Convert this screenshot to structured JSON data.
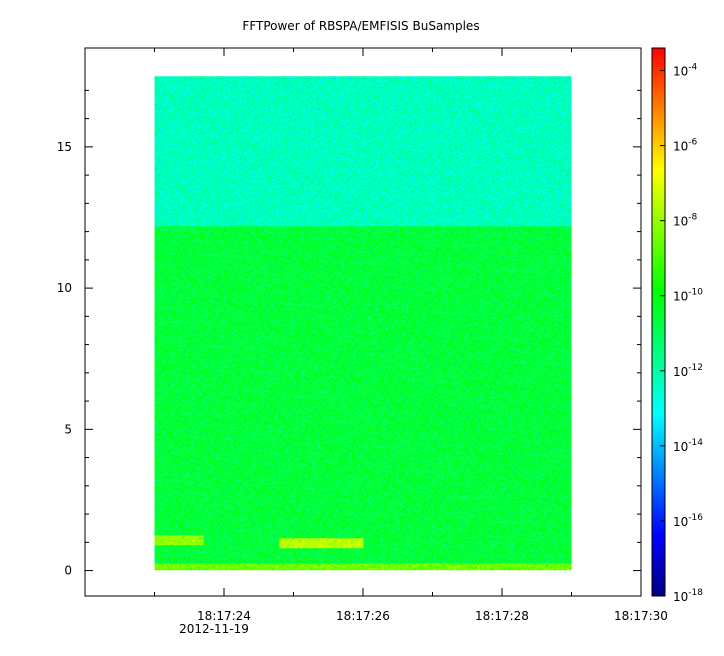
{
  "chart_data": {
    "type": "heatmap",
    "title": "FFTPower of RBSPA/EMFISIS  BuSamples",
    "xlabel": "",
    "ylabel": "",
    "x": {
      "ticks": [
        "18:17:24",
        "18:17:26",
        "18:17:28",
        "18:17:30"
      ],
      "tick_seconds": [
        24,
        26,
        28,
        30
      ],
      "minor_tick_seconds": [
        23,
        25,
        27,
        29
      ],
      "date_label": "2012-11-19",
      "range_seconds": [
        22.0,
        30.0
      ],
      "data_range_seconds": [
        23.0,
        29.0
      ]
    },
    "y": {
      "ticks": [
        0,
        5,
        10,
        15
      ],
      "range": [
        -0.9,
        18.5
      ],
      "data_range": [
        0,
        17.5
      ],
      "band_change_at": 12.2
    },
    "z": {
      "scale": "log",
      "range_exp": [
        -18,
        -3.4
      ],
      "tick_base": "10",
      "tick_exponents": [
        "-18",
        "-16",
        "-14",
        "-12",
        "-10",
        "-8",
        "-6",
        "-4"
      ],
      "tick_exponent_values": [
        -18,
        -16,
        -14,
        -12,
        -10,
        -8,
        -6,
        -4
      ],
      "colormap": [
        "#000080",
        "#0000ff",
        "#0080ff",
        "#00ffff",
        "#00ff80",
        "#00ff00",
        "#80ff00",
        "#ffff00",
        "#ff8000",
        "#ff0000"
      ],
      "typical_exp_upper_band": -12.3,
      "typical_exp_lower_band": -10.6,
      "typical_exp_bottom_edge": -8.5
    },
    "features": [
      {
        "t_start": 23.0,
        "t_end": 23.7,
        "freq": 1.05,
        "exp": -8.0
      },
      {
        "t_start": 24.8,
        "t_end": 26.0,
        "freq": 0.95,
        "exp": -7.5
      }
    ]
  }
}
